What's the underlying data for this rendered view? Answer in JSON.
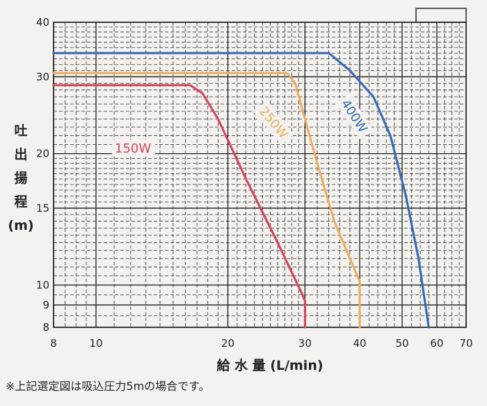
{
  "chart_data": {
    "type": "line",
    "xscale": "log",
    "yscale": "log",
    "xlabel": "給 水 量 (L/min)",
    "ylabel": [
      "吐",
      "出",
      "揚",
      "程",
      "(m)"
    ],
    "xlim": [
      8,
      70
    ],
    "ylim": [
      8,
      40
    ],
    "x_ticks": [
      8,
      10,
      20,
      30,
      40,
      50,
      60,
      70
    ],
    "y_ticks": [
      8,
      9,
      10,
      15,
      20,
      30,
      40
    ],
    "grid": true,
    "series": [
      {
        "name": "150W",
        "color": "#d2465e",
        "points": [
          [
            8,
            28.7
          ],
          [
            16.4,
            28.7
          ],
          [
            17.5,
            27.5
          ],
          [
            19.0,
            24.0
          ],
          [
            22.0,
            17.5
          ],
          [
            26.0,
            12.5
          ],
          [
            29.6,
            9.5
          ],
          [
            30,
            9.2
          ],
          [
            30,
            8
          ]
        ]
      },
      {
        "name": "250W",
        "color": "#e8b060",
        "points": [
          [
            8,
            30.6
          ],
          [
            27.3,
            30.6
          ],
          [
            28.5,
            29.0
          ],
          [
            30.0,
            24.0
          ],
          [
            32.0,
            19.0
          ],
          [
            35.0,
            14.0
          ],
          [
            39.5,
            10.5
          ],
          [
            40,
            10.2
          ],
          [
            40,
            8
          ]
        ]
      },
      {
        "name": "400W",
        "color": "#3a6ab4",
        "points": [
          [
            8,
            34.0
          ],
          [
            34.0,
            34.0
          ],
          [
            38.0,
            31.0
          ],
          [
            43.0,
            27.0
          ],
          [
            47.0,
            22.0
          ],
          [
            51.0,
            16.0
          ],
          [
            54.5,
            11.5
          ],
          [
            57.5,
            8
          ]
        ]
      }
    ],
    "annotation": "※上記選定図は吸込圧力5mの場合です。"
  }
}
